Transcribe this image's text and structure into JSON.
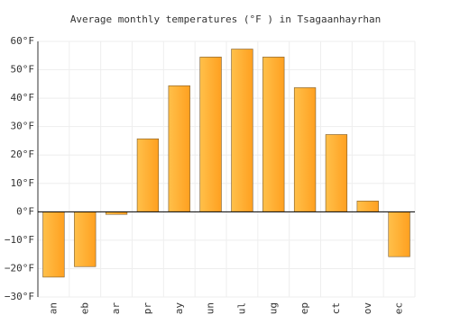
{
  "chart_data": {
    "type": "bar",
    "title": "Average monthly temperatures (°F ) in Tsagaanhayrhan",
    "categories": [
      "an",
      "eb",
      "lar",
      "pr",
      "lay",
      "un",
      "ul",
      "ug",
      "ep",
      "ct",
      "lov",
      "ec"
    ],
    "values": [
      -23,
      -19.3,
      -0.9,
      25.7,
      44.4,
      54.5,
      57.3,
      54.5,
      43.7,
      27.2,
      3.8,
      -15.8
    ],
    "color": "#ffa020",
    "ylim": [
      -30,
      60
    ],
    "yticks": [
      {
        "value": -30,
        "label": "−30°F"
      },
      {
        "value": -20,
        "label": "−20°F"
      },
      {
        "value": -10,
        "label": "−10°F"
      },
      {
        "value": 0,
        "label": "0°F"
      },
      {
        "value": 10,
        "label": "10°F"
      },
      {
        "value": 20,
        "label": "20°F"
      },
      {
        "value": 30,
        "label": "30°F"
      },
      {
        "value": 40,
        "label": "40°F"
      },
      {
        "value": 50,
        "label": "50°F"
      },
      {
        "value": 60,
        "label": "60°F"
      }
    ],
    "grid": true
  }
}
